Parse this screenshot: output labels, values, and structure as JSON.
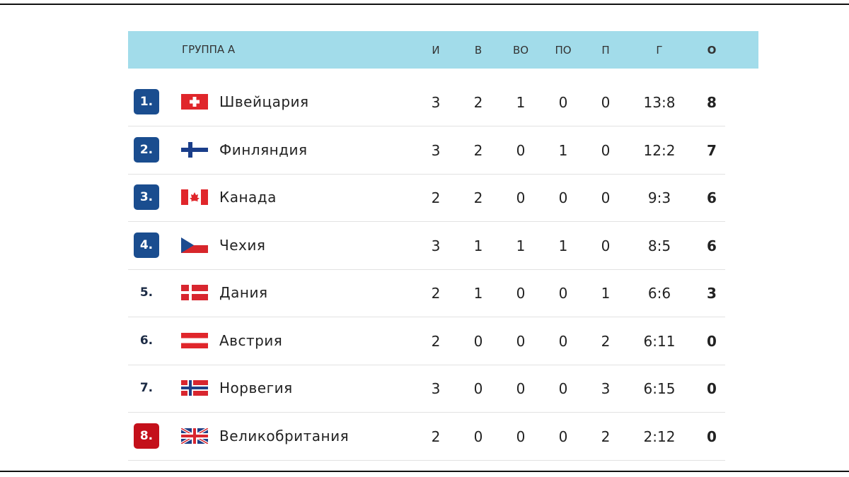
{
  "table": {
    "header": {
      "title": "ГРУППА А",
      "columns": [
        "И",
        "В",
        "ВО",
        "ПО",
        "П",
        "Г",
        "О"
      ]
    },
    "rows": [
      {
        "rank": "1.",
        "team": "Швейцария",
        "stats": [
          3,
          2,
          1,
          0,
          0,
          "13:8",
          8
        ]
      },
      {
        "rank": "2.",
        "team": "Финляндия",
        "stats": [
          3,
          2,
          0,
          1,
          0,
          "12:2",
          7
        ]
      },
      {
        "rank": "3.",
        "team": "Канада",
        "stats": [
          2,
          2,
          0,
          0,
          0,
          "9:3",
          6
        ]
      },
      {
        "rank": "4.",
        "team": "Чехия",
        "stats": [
          3,
          1,
          1,
          1,
          0,
          "8:5",
          6
        ]
      },
      {
        "rank": "5.",
        "team": "Дания",
        "stats": [
          2,
          1,
          0,
          0,
          1,
          "6:6",
          3
        ]
      },
      {
        "rank": "6.",
        "team": "Австрия",
        "stats": [
          2,
          0,
          0,
          0,
          2,
          "6:11",
          0
        ]
      },
      {
        "rank": "7.",
        "team": "Норвегия",
        "stats": [
          3,
          0,
          0,
          0,
          3,
          "6:15",
          0
        ]
      },
      {
        "rank": "8.",
        "team": "Великобритания",
        "stats": [
          2,
          0,
          0,
          0,
          2,
          "2:12",
          0
        ]
      }
    ]
  }
}
